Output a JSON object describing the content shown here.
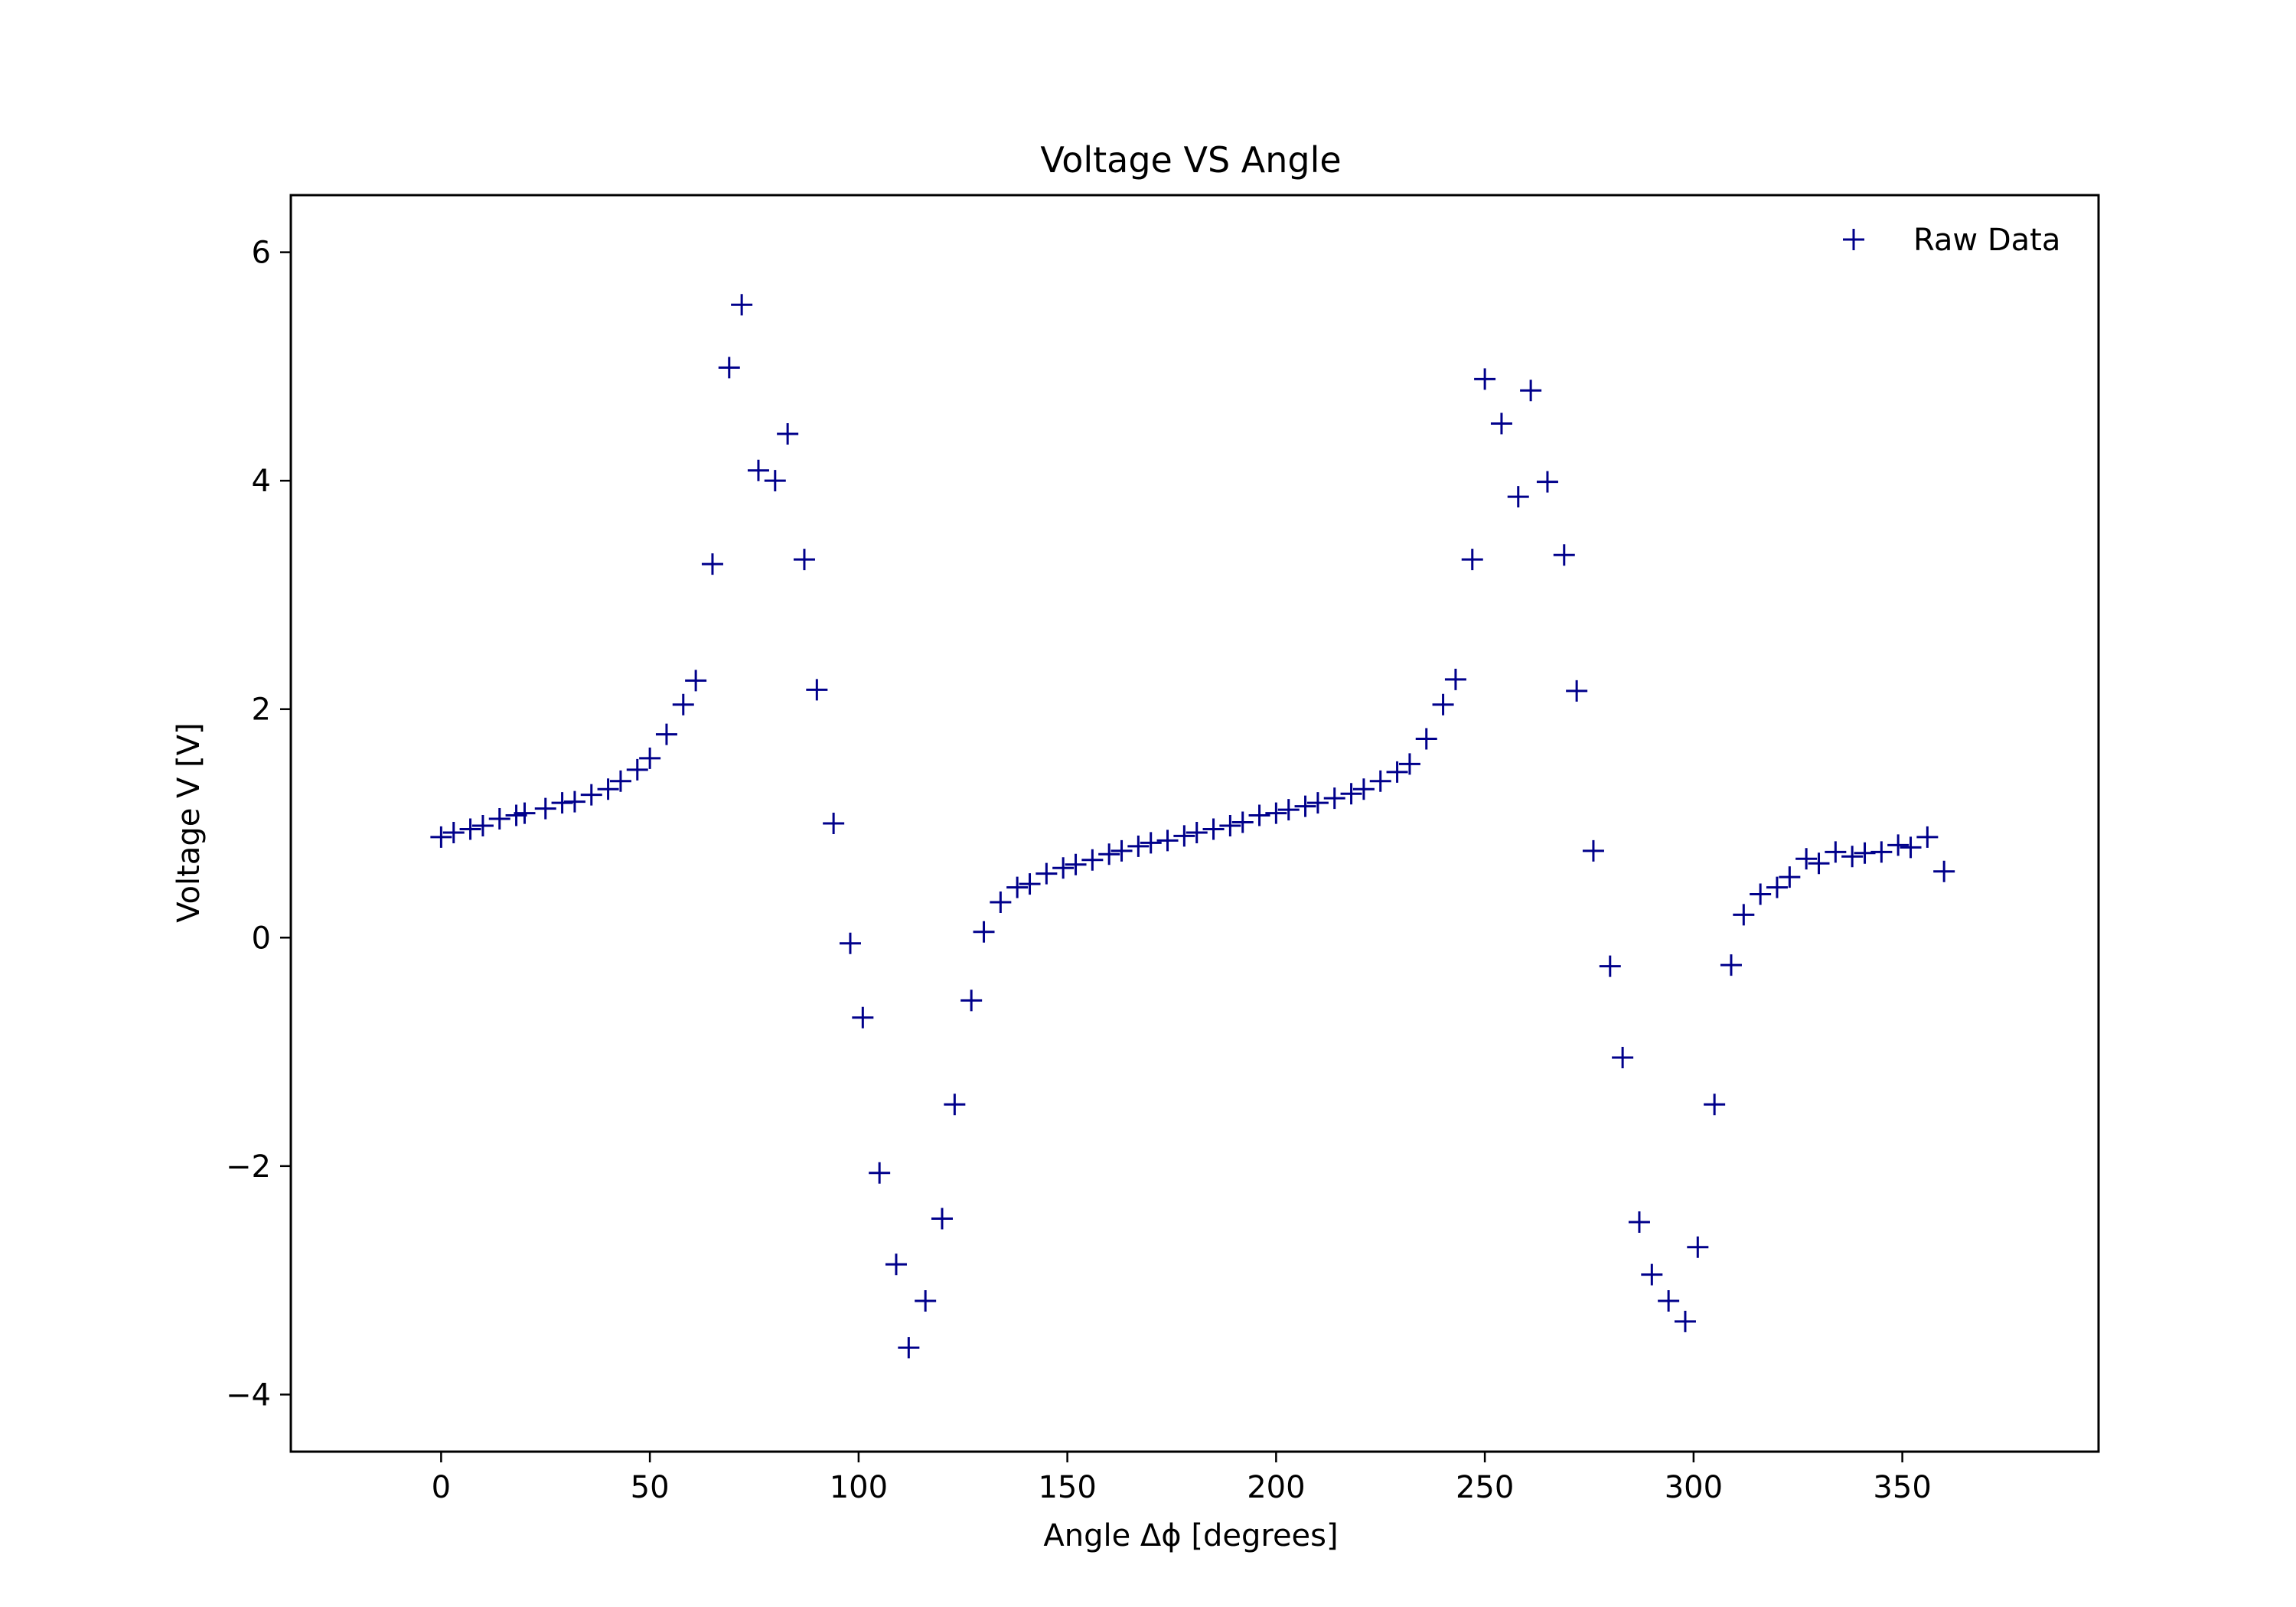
{
  "chart_data": {
    "type": "scatter",
    "title": "Voltage VS Angle",
    "xlabel": "Angle Δϕ [degrees]",
    "ylabel": "Voltage V [V]",
    "xlim": [
      -36,
      397
    ],
    "ylim": [
      -4.5,
      6.5
    ],
    "xticks": [
      0,
      50,
      100,
      150,
      200,
      250,
      300,
      350
    ],
    "yticks": [
      -4,
      -2,
      0,
      2,
      4,
      6
    ],
    "xtick_labels": [
      "0",
      "50",
      "100",
      "150",
      "200",
      "250",
      "300",
      "350"
    ],
    "ytick_labels": [
      "−4",
      "−2",
      "0",
      "2",
      "4",
      "6"
    ],
    "grid": false,
    "legend": {
      "position": "top-right",
      "entries": [
        "Raw Data"
      ]
    },
    "series": [
      {
        "name": "Raw Data",
        "marker": "+",
        "color": "#00008b",
        "x": [
          0,
          3,
          7,
          10,
          14,
          18,
          20,
          25,
          29,
          32,
          36,
          40,
          43,
          47,
          50,
          54,
          58,
          61,
          65,
          69,
          72,
          76,
          80,
          83,
          87,
          90,
          94,
          98,
          101,
          105,
          109,
          112,
          116,
          120,
          123,
          127,
          130,
          134,
          138,
          141,
          145,
          149,
          152,
          156,
          160,
          163,
          167,
          170,
          174,
          178,
          181,
          185,
          189,
          192,
          196,
          200,
          203,
          207,
          210,
          214,
          218,
          221,
          225,
          229,
          232,
          236,
          240,
          243,
          247,
          250,
          254,
          258,
          261,
          265,
          269,
          272,
          276,
          280,
          283,
          287,
          290,
          294,
          298,
          301,
          305,
          309,
          312,
          316,
          320,
          323,
          327,
          330,
          334,
          338,
          341,
          345,
          349,
          352,
          356,
          360
        ],
        "y": [
          0.88,
          0.92,
          0.95,
          0.98,
          1.04,
          1.07,
          1.09,
          1.13,
          1.18,
          1.19,
          1.25,
          1.3,
          1.37,
          1.47,
          1.57,
          1.78,
          2.04,
          2.25,
          3.27,
          4.99,
          5.54,
          4.09,
          4.0,
          4.41,
          3.31,
          2.17,
          1.0,
          -0.05,
          -0.7,
          -2.06,
          -2.86,
          -3.59,
          -3.18,
          -2.46,
          -1.46,
          -0.55,
          0.05,
          0.31,
          0.44,
          0.47,
          0.56,
          0.61,
          0.64,
          0.68,
          0.73,
          0.76,
          0.8,
          0.83,
          0.85,
          0.89,
          0.92,
          0.95,
          0.98,
          1.01,
          1.07,
          1.09,
          1.12,
          1.15,
          1.18,
          1.22,
          1.26,
          1.3,
          1.37,
          1.45,
          1.52,
          1.74,
          2.04,
          2.26,
          3.31,
          4.89,
          4.5,
          3.86,
          4.79,
          3.99,
          3.35,
          2.16,
          0.76,
          -0.25,
          -1.05,
          -2.49,
          -2.95,
          -3.18,
          -3.36,
          -2.71,
          -1.46,
          -0.24,
          0.2,
          0.38,
          0.44,
          0.53,
          0.69,
          0.65,
          0.75,
          0.71,
          0.74,
          0.75,
          0.81,
          0.79,
          0.88,
          0.58
        ]
      }
    ]
  }
}
